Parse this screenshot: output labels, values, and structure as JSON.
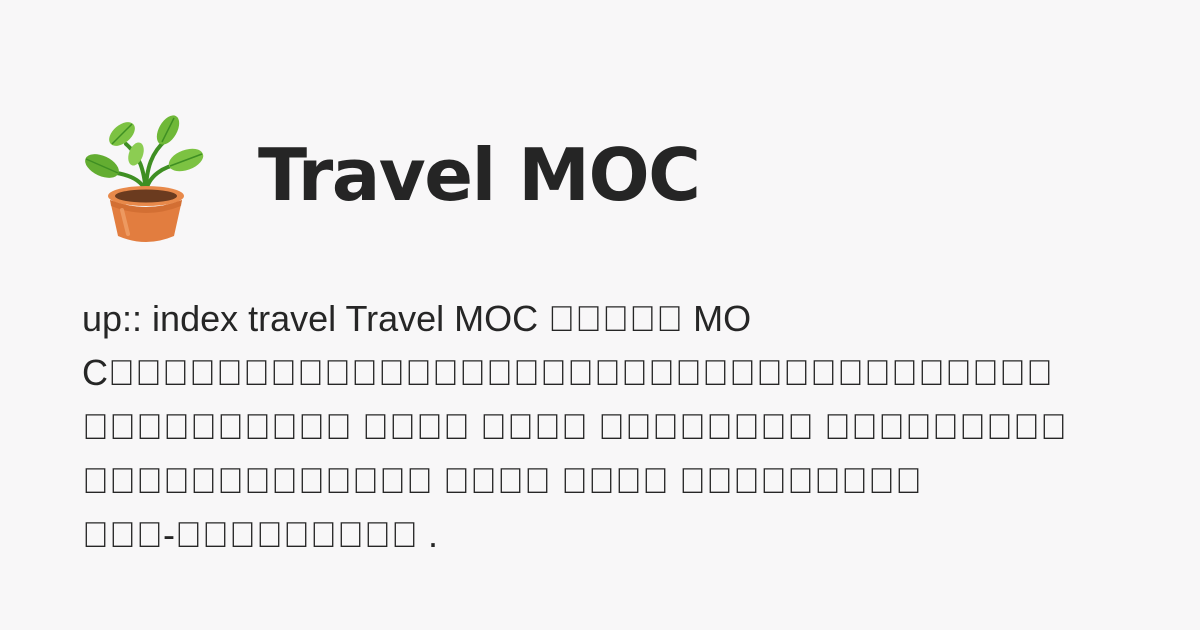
{
  "page": {
    "title": "Travel MOC",
    "description": "up:: index travel Travel MOC \u0000\u0000\u0000\u0000\u0000 MOC\u0000\u0000\u0000\u0000\u0000\u0000\u0000\u0000\u0000\u0000\u0000\u0000\u0000\u0000\u0000\u0000\u0000\u0000\u0000\u0000\u0000\u0000\u0000\u0000\u0000\u0000\u0000\u0000\u0000\u0000\u0000\u0000\u0000\u0000\u0000 \u0000\u0000\u0000\u0000\u0000\u0000\u0000\u0000\u0000\u0000 \u0000\u0000\u0000\u0000 \u0000\u0000\u0000\u0000 \u0000\u0000\u0000\u0000\u0000\u0000\u0000\u0000 \u0000\u0000\u0000\u0000\u0000\u0000\u0000\u0000\u0000 \u0000\u0000\u0000\u0000\u0000\u0000\u0000\u0000\u0000\u0000\u0000\u0000\u0000 \u0000\u0000\u0000\u0000 \u0000\u0000\u0000\u0000 \u0000\u0000\u0000\u0000\u0000\u0000\u0000\u0000\u0000 \u0000\u0000\u0000-\u0000\u0000\u0000\u0000\u0000\u0000\u0000\u0000\u0000 ."
  },
  "logo": {
    "icon": "potted-plant-icon",
    "colors": {
      "leaf_dark": "#3f8f23",
      "leaf_light": "#7cc242",
      "pot": "#e27d3f",
      "pot_shadow": "#c9652b",
      "soil": "#6b3b1f"
    }
  },
  "colors": {
    "background": "#f8f7f8",
    "text": "#262626"
  }
}
